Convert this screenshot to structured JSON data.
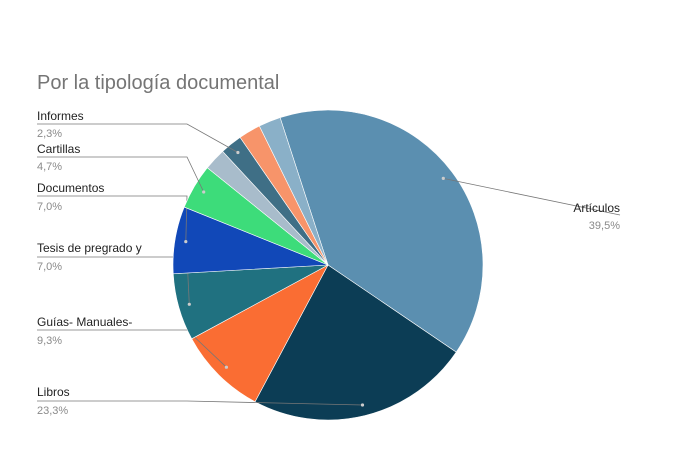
{
  "chart_data": {
    "type": "pie",
    "title": "Por la tipología documental",
    "slices": [
      {
        "label": "Artículos",
        "value": 39.5,
        "display": "39,5%",
        "color": "#5b8fb0"
      },
      {
        "label": "Libros",
        "value": 23.3,
        "display": "23,3%",
        "color": "#0c3d55"
      },
      {
        "label": "Guías- Manuales-",
        "value": 9.3,
        "display": "9,3%",
        "color": "#fa6d33"
      },
      {
        "label": "Tesis de pregrado y",
        "value": 7.0,
        "display": "7,0%",
        "color": "#207180"
      },
      {
        "label": "Documentos",
        "value": 7.0,
        "display": "7,0%",
        "color": "#1148b8"
      },
      {
        "label": "Cartillas",
        "value": 4.7,
        "display": "4,7%",
        "color": "#3ddc7a"
      },
      {
        "label": "",
        "value": 2.3,
        "display": "",
        "color": "#a8bccb"
      },
      {
        "label": "Informes",
        "value": 2.3,
        "display": "2,3%",
        "color": "#3f6f86"
      },
      {
        "label": "",
        "value": 2.3,
        "display": "",
        "color": "#f7946a"
      },
      {
        "label": "",
        "value": 2.3,
        "display": "",
        "color": "#8ab0c8"
      }
    ],
    "legend": "callout-labels"
  }
}
